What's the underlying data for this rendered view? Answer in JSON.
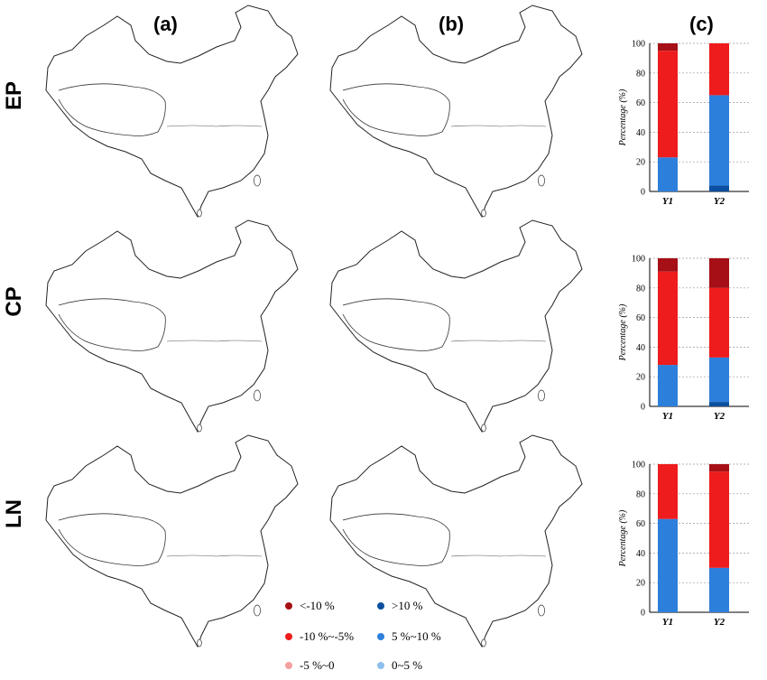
{
  "panel_labels": {
    "a": "(a)",
    "b": "(b)",
    "c": "(c)"
  },
  "row_labels": [
    "EP",
    "CP",
    "LN"
  ],
  "colors": {
    "lt_neg10": "#a50f15",
    "neg10_neg5": "#ee1c1c",
    "neg5_0": "#f4a0a0",
    "gt10": "#0b4fa0",
    "p5_10": "#2d7fdc",
    "p0_5": "#8ec0ee"
  },
  "legend": {
    "items": [
      {
        "label": "<-10 %",
        "color_key": "lt_neg10"
      },
      {
        "label": ">10 %",
        "color_key": "gt10"
      },
      {
        "label": "-10 %~-5%",
        "color_key": "neg10_neg5"
      },
      {
        "label": "5 %~10 %",
        "color_key": "p5_10"
      },
      {
        "label": "-5 %~0",
        "color_key": "neg5_0"
      },
      {
        "label": "0~5 %",
        "color_key": "p0_5"
      }
    ]
  },
  "chart_data": [
    {
      "type": "bar",
      "stacked": true,
      "row": "EP",
      "categories": [
        "Y1",
        "Y2"
      ],
      "ylabel": "Percentage (%)",
      "ylim": [
        0,
        100
      ],
      "yticks": [
        0,
        20,
        40,
        60,
        80,
        100
      ],
      "grid": true,
      "series": [
        {
          "color_key": "gt10",
          "values": [
            0,
            4
          ]
        },
        {
          "color_key": "p5_10",
          "values": [
            23,
            61
          ]
        },
        {
          "color_key": "neg10_neg5",
          "values": [
            72,
            35
          ]
        },
        {
          "color_key": "lt_neg10",
          "values": [
            5,
            0
          ]
        }
      ]
    },
    {
      "type": "bar",
      "stacked": true,
      "row": "CP",
      "categories": [
        "Y1",
        "Y2"
      ],
      "ylabel": "Percentage (%)",
      "ylim": [
        0,
        100
      ],
      "yticks": [
        0,
        20,
        40,
        60,
        80,
        100
      ],
      "grid": true,
      "series": [
        {
          "color_key": "gt10",
          "values": [
            0,
            3
          ]
        },
        {
          "color_key": "p5_10",
          "values": [
            28,
            30
          ]
        },
        {
          "color_key": "neg10_neg5",
          "values": [
            63,
            47
          ]
        },
        {
          "color_key": "lt_neg10",
          "values": [
            9,
            20
          ]
        }
      ]
    },
    {
      "type": "bar",
      "stacked": true,
      "row": "LN",
      "categories": [
        "Y1",
        "Y2"
      ],
      "ylabel": "Percentage (%)",
      "ylim": [
        0,
        100
      ],
      "yticks": [
        0,
        20,
        40,
        60,
        80,
        100
      ],
      "grid": true,
      "series": [
        {
          "color_key": "gt10",
          "values": [
            0,
            0
          ]
        },
        {
          "color_key": "p5_10",
          "values": [
            63,
            30
          ]
        },
        {
          "color_key": "neg10_neg5",
          "values": [
            37,
            65
          ]
        },
        {
          "color_key": "lt_neg10",
          "values": [
            0,
            5
          ]
        }
      ]
    }
  ]
}
